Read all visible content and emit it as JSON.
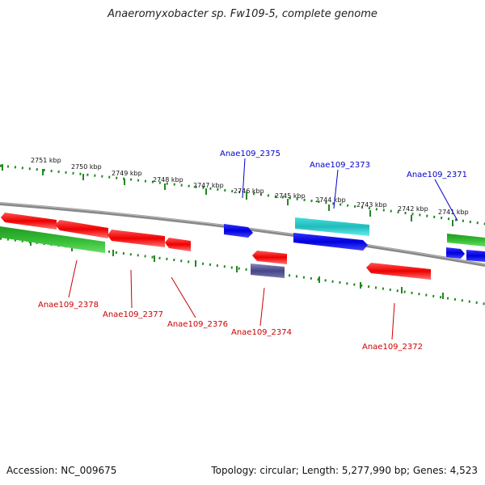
{
  "title": "Anaeromyxobacter sp. Fw109-5, complete genome",
  "footer": {
    "accession": "Accession: NC_009675",
    "summary": "Topology: circular; Length: 5,277,990 bp; Genes: 4,523"
  },
  "scale_labels": [
    "2751 kbp",
    "2750 kbp",
    "2749 kbp",
    "2748 kbp",
    "2747 kbp",
    "2746 kbp",
    "2745 kbp",
    "2744 kbp",
    "2743 kbp",
    "2742 kbp",
    "2741 kbp"
  ],
  "upper_gene_labels": [
    "Anae109_2375",
    "Anae109_2373",
    "Anae109_2371"
  ],
  "lower_gene_labels": [
    "Anae109_2378",
    "Anae109_2377",
    "Anae109_2376",
    "Anae109_2374",
    "Anae109_2372"
  ],
  "colors": {
    "forward_label": "#0000cc",
    "reverse_label": "#cc0000",
    "tick": "#228822",
    "backbone": "#888888",
    "red_gene": "#ee0000",
    "blue_gene": "#0000dd",
    "cyan_gene": "#22cccc",
    "green_gene": "#33bb33",
    "navy_gene": "#444488"
  }
}
